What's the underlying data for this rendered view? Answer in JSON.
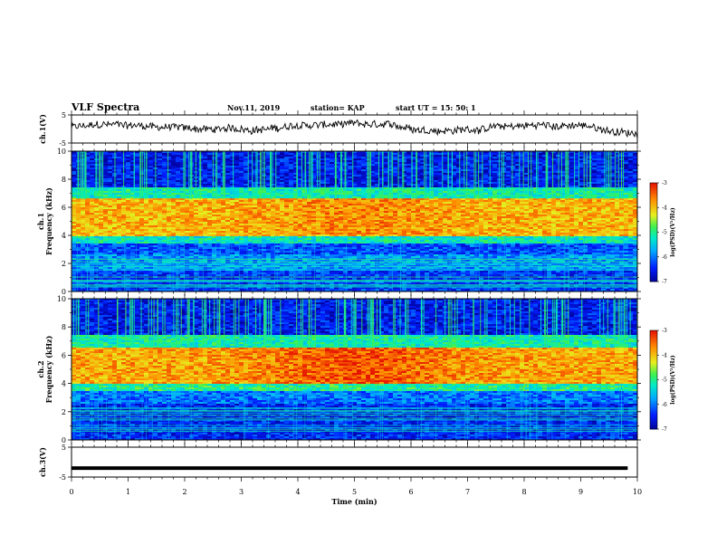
{
  "header": {
    "title": "VLF Spectra",
    "date": "Nov.11, 2019",
    "station": "station= KAP",
    "start": "start  UT =   15: 50: 1"
  },
  "chart_data": [
    {
      "type": "line",
      "panel": "ch1-waveform",
      "ylabel": "ch.1(V)",
      "ylim": [
        -5,
        5
      ],
      "yticks": [
        "5",
        "-5"
      ],
      "xlim": [
        0,
        10
      ],
      "description": "noisy waveform fluctuating roughly between -2 and 3 V"
    },
    {
      "type": "heatmap",
      "panel": "ch1-spectrogram",
      "ylabel": "ch.1\nFrequency  (kHz)",
      "ylim": [
        0,
        10
      ],
      "yticks": [
        "0",
        "2",
        "4",
        "6",
        "8",
        "10"
      ],
      "xlim": [
        0,
        10
      ],
      "bands": [
        {
          "from": 0,
          "to": 1.5,
          "logpsd": -6.3
        },
        {
          "from": 1.5,
          "to": 2.6,
          "logpsd": -5.8
        },
        {
          "from": 2.6,
          "to": 3.4,
          "logpsd": -6.2
        },
        {
          "from": 3.4,
          "to": 4.0,
          "logpsd": -5.2
        },
        {
          "from": 4.0,
          "to": 6.6,
          "logpsd": -3.9
        },
        {
          "from": 6.6,
          "to": 7.4,
          "logpsd": -5.1
        },
        {
          "from": 7.4,
          "to": 10,
          "logpsd": -6.5
        }
      ],
      "colorbar": {
        "label": "log(PSD)(V²/Hz)",
        "range": [
          -7,
          -3
        ],
        "ticks": [
          "-3",
          "-4",
          "-5",
          "-6",
          "-7"
        ]
      }
    },
    {
      "type": "heatmap",
      "panel": "ch2-spectrogram",
      "ylabel": "ch.2\nFrequency  (kHz)",
      "ylim": [
        0,
        10
      ],
      "yticks": [
        "0",
        "2",
        "4",
        "6",
        "8",
        "10"
      ],
      "xlim": [
        0,
        10
      ],
      "bands": [
        {
          "from": 0,
          "to": 2.6,
          "logpsd": -6.4
        },
        {
          "from": 2.6,
          "to": 3.4,
          "logpsd": -6.0
        },
        {
          "from": 3.4,
          "to": 4.0,
          "logpsd": -5.0
        },
        {
          "from": 4.0,
          "to": 6.6,
          "logpsd": -3.8
        },
        {
          "from": 6.6,
          "to": 7.4,
          "logpsd": -5.1
        },
        {
          "from": 7.4,
          "to": 10,
          "logpsd": -6.5
        }
      ],
      "colorbar": {
        "label": "log(PSD)(V²/Hz)",
        "range": [
          -7,
          -3
        ],
        "ticks": [
          "-3",
          "-4",
          "-5",
          "-6",
          "-7"
        ]
      }
    },
    {
      "type": "line",
      "panel": "ch3-waveform",
      "ylabel": "ch.3(V)",
      "ylim": [
        -5,
        5
      ],
      "yticks": [
        "5",
        "-5"
      ],
      "xlim": [
        0,
        10
      ],
      "constant_value": -2,
      "xlabel": "Time  (min)",
      "xticks": [
        "0",
        "1",
        "2",
        "3",
        "4",
        "5",
        "6",
        "7",
        "8",
        "9",
        "10"
      ]
    }
  ],
  "colors": {
    "frame": "#000000",
    "line": "#000000"
  }
}
